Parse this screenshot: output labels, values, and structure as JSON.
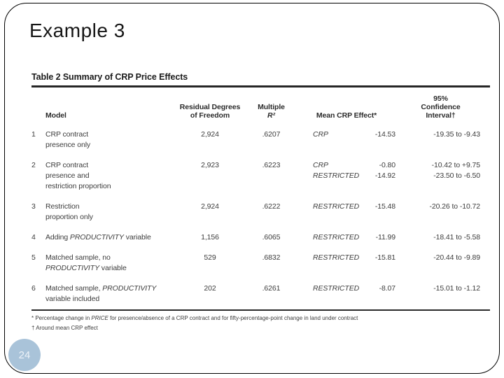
{
  "slide": {
    "title": "Example 3",
    "page_number": "24",
    "accent_color": "#a9c3d9",
    "border_color": "#000000",
    "scan_text_color": "#3c3c3c"
  },
  "table": {
    "title": "Table 2 Summary of CRP Price Effects",
    "headers": {
      "model": "Model",
      "residual_line1": "Residual Degrees",
      "residual_line2": "of Freedom",
      "multiple_line1": "Multiple",
      "multiple_line2": "R²",
      "mean_effect": "Mean CRP Effect*",
      "ci_line1": "95%",
      "ci_line2": "Confidence",
      "ci_line3": "Interval†"
    },
    "rows": [
      {
        "num": "1",
        "model_lines": [
          [
            {
              "t": "CRP contract"
            }
          ],
          [
            {
              "t": "presence only"
            }
          ]
        ],
        "df": "2,924",
        "r2": ".6207",
        "effects": [
          {
            "label": "CRP",
            "value": "-14.53",
            "ci": "-19.35 to -9.43"
          }
        ]
      },
      {
        "num": "2",
        "model_lines": [
          [
            {
              "t": "CRP contract"
            }
          ],
          [
            {
              "t": "presence and"
            }
          ],
          [
            {
              "t": "restriction proportion"
            }
          ]
        ],
        "df": "2,923",
        "r2": ".6223",
        "effects": [
          {
            "label": "CRP",
            "value": "-0.80",
            "ci": "-10.42 to +9.75"
          },
          {
            "label": "RESTRICTED",
            "value": "-14.92",
            "ci": "-23.50 to -6.50"
          }
        ]
      },
      {
        "num": "3",
        "model_lines": [
          [
            {
              "t": "Restriction"
            }
          ],
          [
            {
              "t": "proportion only"
            }
          ]
        ],
        "df": "2,924",
        "r2": ".6222",
        "effects": [
          {
            "label": "RESTRICTED",
            "value": "-15.48",
            "ci": "-20.26 to -10.72"
          }
        ]
      },
      {
        "num": "4",
        "model_lines": [
          [
            {
              "t": "Adding "
            },
            {
              "t": "PRODUCTIVITY",
              "i": true
            },
            {
              "t": " variable"
            }
          ]
        ],
        "df": "1,156",
        "r2": ".6065",
        "effects": [
          {
            "label": "RESTRICTED",
            "value": "-11.99",
            "ci": "-18.41 to -5.58"
          }
        ]
      },
      {
        "num": "5",
        "model_lines": [
          [
            {
              "t": "Matched sample, no"
            }
          ],
          [
            {
              "t": "PRODUCTIVITY",
              "i": true
            },
            {
              "t": " variable"
            }
          ]
        ],
        "df": "529",
        "r2": ".6832",
        "effects": [
          {
            "label": "RESTRICTED",
            "value": "-15.81",
            "ci": "-20.44 to -9.89"
          }
        ]
      },
      {
        "num": "6",
        "model_lines": [
          [
            {
              "t": "Matched sample, "
            },
            {
              "t": "PRODUCTIVITY",
              "i": true
            }
          ],
          [
            {
              "t": "variable included"
            }
          ]
        ],
        "df": "202",
        "r2": ".6261",
        "effects": [
          {
            "label": "RESTRICTED",
            "value": "-8.07",
            "ci": "-15.01 to -1.12"
          }
        ]
      }
    ],
    "footnotes": {
      "fn1": [
        {
          "t": "* Percentage change in "
        },
        {
          "t": "PRICE",
          "i": true
        },
        {
          "t": " for presence/absence of a CRP contract and for fifty-percentage-point change in land under contract"
        }
      ],
      "fn2": "† Around mean CRP effect"
    }
  }
}
